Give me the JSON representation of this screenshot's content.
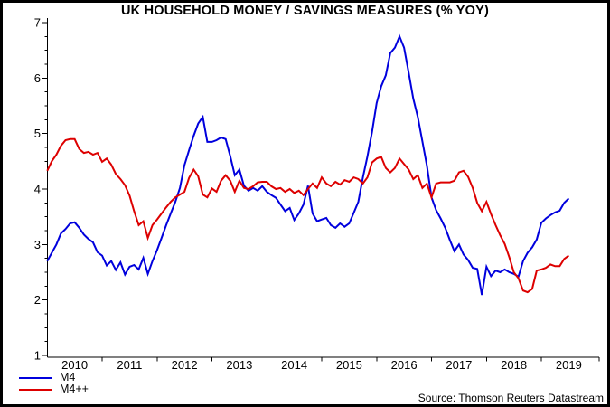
{
  "source_note": "Source: Thomson Reuters Datastream",
  "chart_data": {
    "type": "line",
    "title": "UK HOUSEHOLD MONEY / SAVINGS MEASURES (% YOY)",
    "xlabel": "",
    "ylabel": "",
    "ylim": [
      1,
      7
    ],
    "y_ticks": [
      1,
      2,
      3,
      4,
      5,
      6,
      7
    ],
    "y_minor_tick_step": 0.25,
    "grid": false,
    "legend_position": "bottom-left",
    "x_start": "2010-01",
    "x_end": "2019-07",
    "frequency": "monthly",
    "x_year_labels": [
      "2010",
      "2011",
      "2012",
      "2013",
      "2014",
      "2015",
      "2016",
      "2017",
      "2018",
      "2019"
    ],
    "axis_color": "#000000",
    "series": [
      {
        "name": "M4",
        "color": "#0000dd",
        "values": [
          2.7,
          2.85,
          3.0,
          3.2,
          3.28,
          3.38,
          3.4,
          3.3,
          3.18,
          3.1,
          3.04,
          2.86,
          2.8,
          2.62,
          2.7,
          2.54,
          2.68,
          2.46,
          2.6,
          2.63,
          2.55,
          2.76,
          2.47,
          2.7,
          2.9,
          3.12,
          3.35,
          3.56,
          3.77,
          4.02,
          4.43,
          4.7,
          4.96,
          5.18,
          5.3,
          4.85,
          4.85,
          4.88,
          4.93,
          4.9,
          4.59,
          4.25,
          4.35,
          4.06,
          3.97,
          4.02,
          3.97,
          4.05,
          3.95,
          3.89,
          3.84,
          3.72,
          3.6,
          3.66,
          3.44,
          3.56,
          3.72,
          4.06,
          3.56,
          3.42,
          3.45,
          3.48,
          3.35,
          3.3,
          3.38,
          3.32,
          3.38,
          3.57,
          3.77,
          4.21,
          4.59,
          5.03,
          5.55,
          5.85,
          6.05,
          6.45,
          6.55,
          6.75,
          6.55,
          6.1,
          5.63,
          5.3,
          4.86,
          4.42,
          3.85,
          3.62,
          3.47,
          3.3,
          3.08,
          2.88,
          3.0,
          2.82,
          2.72,
          2.58,
          2.56,
          2.09,
          2.6,
          2.43,
          2.53,
          2.5,
          2.55,
          2.5,
          2.47,
          2.42,
          2.7,
          2.85,
          2.95,
          3.09,
          3.39,
          3.47,
          3.53,
          3.58,
          3.61,
          3.75,
          3.83
        ]
      },
      {
        "name": "M4++",
        "color": "#dd0000",
        "values": [
          4.33,
          4.5,
          4.62,
          4.78,
          4.88,
          4.9,
          4.9,
          4.72,
          4.65,
          4.67,
          4.62,
          4.65,
          4.49,
          4.55,
          4.44,
          4.27,
          4.18,
          4.07,
          3.88,
          3.6,
          3.35,
          3.42,
          3.12,
          3.35,
          3.45,
          3.56,
          3.67,
          3.77,
          3.85,
          3.9,
          3.95,
          4.2,
          4.35,
          4.23,
          3.9,
          3.85,
          4.01,
          3.95,
          4.15,
          4.25,
          4.15,
          3.95,
          4.15,
          4.02,
          4.0,
          4.05,
          4.12,
          4.13,
          4.13,
          4.05,
          4.0,
          4.02,
          3.95,
          4.0,
          3.93,
          3.97,
          3.89,
          4.0,
          4.1,
          4.02,
          4.21,
          4.1,
          4.05,
          4.13,
          4.08,
          4.16,
          4.13,
          4.21,
          4.18,
          4.1,
          4.21,
          4.48,
          4.55,
          4.58,
          4.38,
          4.3,
          4.38,
          4.55,
          4.45,
          4.35,
          4.18,
          4.25,
          4.02,
          4.1,
          3.85,
          4.1,
          4.12,
          4.12,
          4.12,
          4.15,
          4.3,
          4.33,
          4.22,
          4.02,
          3.75,
          3.6,
          3.77,
          3.55,
          3.35,
          3.17,
          3.01,
          2.77,
          2.5,
          2.39,
          2.17,
          2.14,
          2.2,
          2.53,
          2.55,
          2.58,
          2.64,
          2.61,
          2.61,
          2.74,
          2.8
        ]
      }
    ]
  }
}
